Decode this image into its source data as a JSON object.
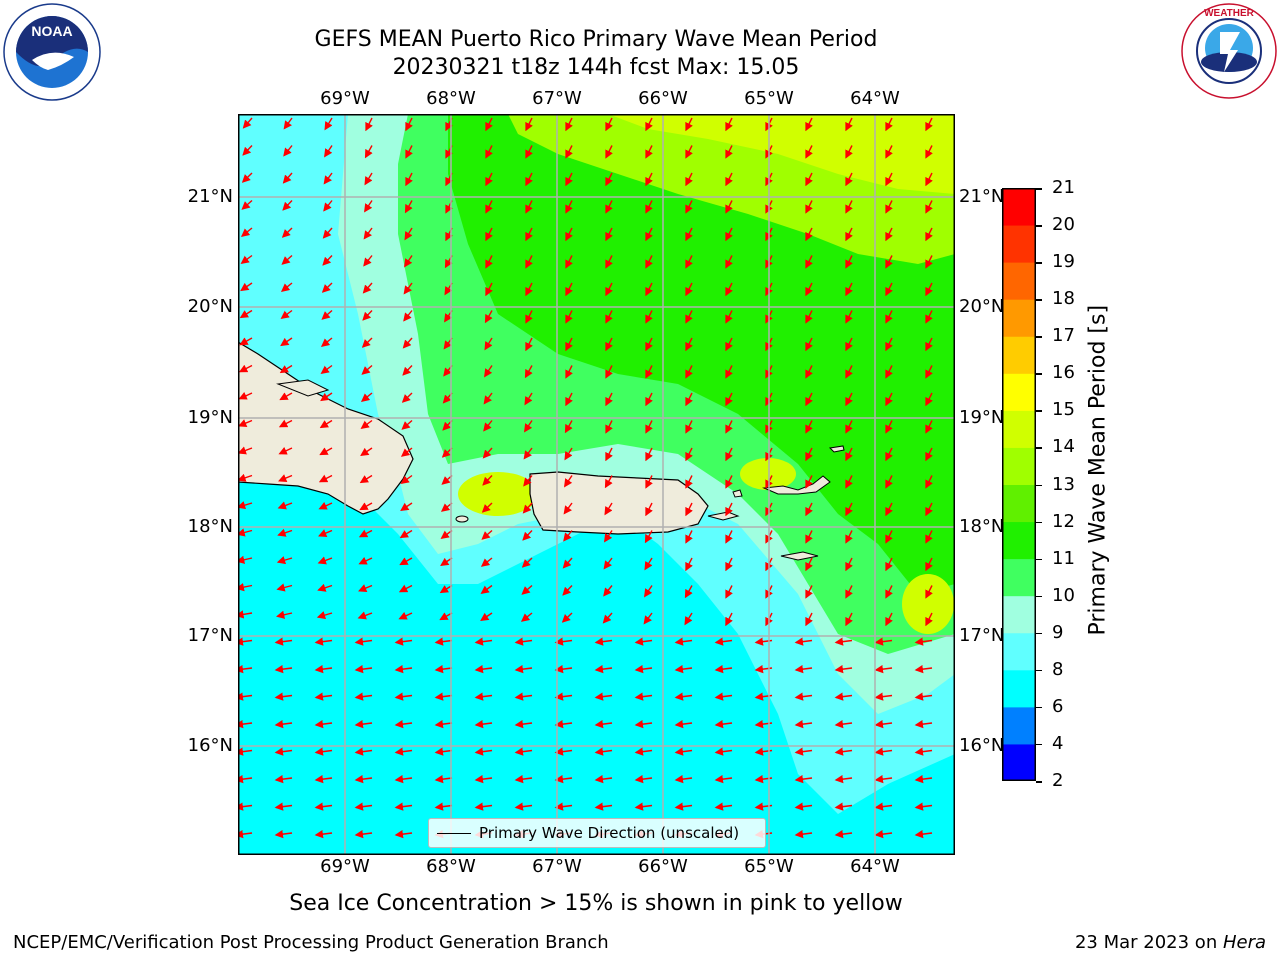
{
  "title": {
    "line1": "GEFS MEAN Puerto Rico Primary Wave Mean Period",
    "line2": "20230321 t18z 144h fcst   Max: 15.05"
  },
  "map": {
    "lon_labels": [
      "69°W",
      "68°W",
      "67°W",
      "66°W",
      "65°W",
      "64°W"
    ],
    "lat_labels": [
      "21°N",
      "20°N",
      "19°N",
      "18°N",
      "17°N",
      "16°N"
    ],
    "legend_label": "Primary Wave Direction (unscaled)",
    "land_color": "#efecdc",
    "arrow_color": "#ff0000"
  },
  "colorbar": {
    "label": "Primary Wave Mean Period [s]",
    "ticks": [
      "2",
      "4",
      "6",
      "8",
      "9",
      "10",
      "11",
      "12",
      "13",
      "14",
      "15",
      "16",
      "17",
      "18",
      "19",
      "20",
      "21"
    ],
    "colors": [
      "#0000ff",
      "#0080ff",
      "#00ffff",
      "#60ffff",
      "#a0ffe0",
      "#40ff60",
      "#20f000",
      "#60f000",
      "#a0ff00",
      "#d0ff00",
      "#ffff00",
      "#ffcc00",
      "#ff9900",
      "#ff6600",
      "#ff3300",
      "#ff0000"
    ]
  },
  "note": "Sea Ice Concentration > 15% is shown in pink to yellow",
  "footer": {
    "left": "NCEP/EMC/Verification Post Processing Product Generation Branch",
    "date": "23 Mar 2023 on ",
    "machine": "Hera"
  }
}
